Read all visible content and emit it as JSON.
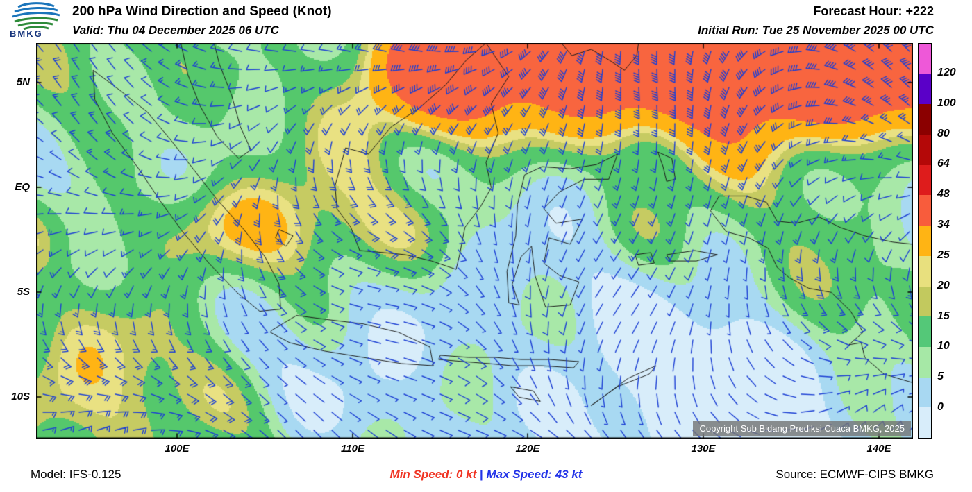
{
  "header": {
    "logo_text": "BMKG",
    "title": "200 hPa Wind Direction and Speed (Knot)",
    "forecast_hour": "Forecast Hour: +222",
    "valid": "Valid: Thu 04 December 2025 06 UTC",
    "initial_run": "Initial Run: Tue 25 November 2025 00 UTC"
  },
  "map": {
    "lat_ticks": [
      "5N",
      "EQ",
      "5S",
      "10S"
    ],
    "lon_ticks": [
      "100E",
      "110E",
      "120E",
      "130E",
      "140E"
    ],
    "copyright": "Copyright Sub Bidang Prediksi Cuaca BMKG, 2025",
    "barb_color": "#1C3FD4",
    "coastline_color": "#1a1a1a"
  },
  "legend": {
    "unit": "Knot",
    "tick_labels": [
      "120",
      "100",
      "80",
      "64",
      "48",
      "34",
      "25",
      "20",
      "15",
      "10",
      "5",
      "0"
    ],
    "speed_thresholds_kt": [
      0,
      5,
      10,
      15,
      20,
      25,
      34,
      48,
      64,
      80,
      100,
      120
    ],
    "segment_colors_top_to_bottom": [
      "#EE58D8",
      "#5A00C8",
      "#8B0000",
      "#B40808",
      "#DE1C1C",
      "#F85C3C",
      "#FFB414",
      "#E8E07E",
      "#C2C95E",
      "#54C878",
      "#A6E8A6",
      "#A8D8F2",
      "#D8EDFA"
    ]
  },
  "field": {
    "min_speed_kt": 0,
    "max_speed_kt": 43,
    "palette": [
      [
        5,
        "#D8EDFA"
      ],
      [
        10,
        "#A8D9F2"
      ],
      [
        14,
        "#A8E8A8"
      ],
      [
        19,
        "#55C86C"
      ],
      [
        22,
        "#C6CB62"
      ],
      [
        25,
        "#E9E182"
      ],
      [
        34,
        "#FFB414"
      ],
      [
        48,
        "#F8653F"
      ],
      [
        130,
        "#E02818"
      ]
    ]
  },
  "footer": {
    "model": "Model: IFS-0.125",
    "min_speed_label": "Min Speed:",
    "min_speed_value": "0 kt",
    "separator": "|",
    "max_speed_label": "Max Speed:",
    "max_speed_value": "43 kt",
    "source": "Source: ECMWF-CIPS BMKG"
  }
}
